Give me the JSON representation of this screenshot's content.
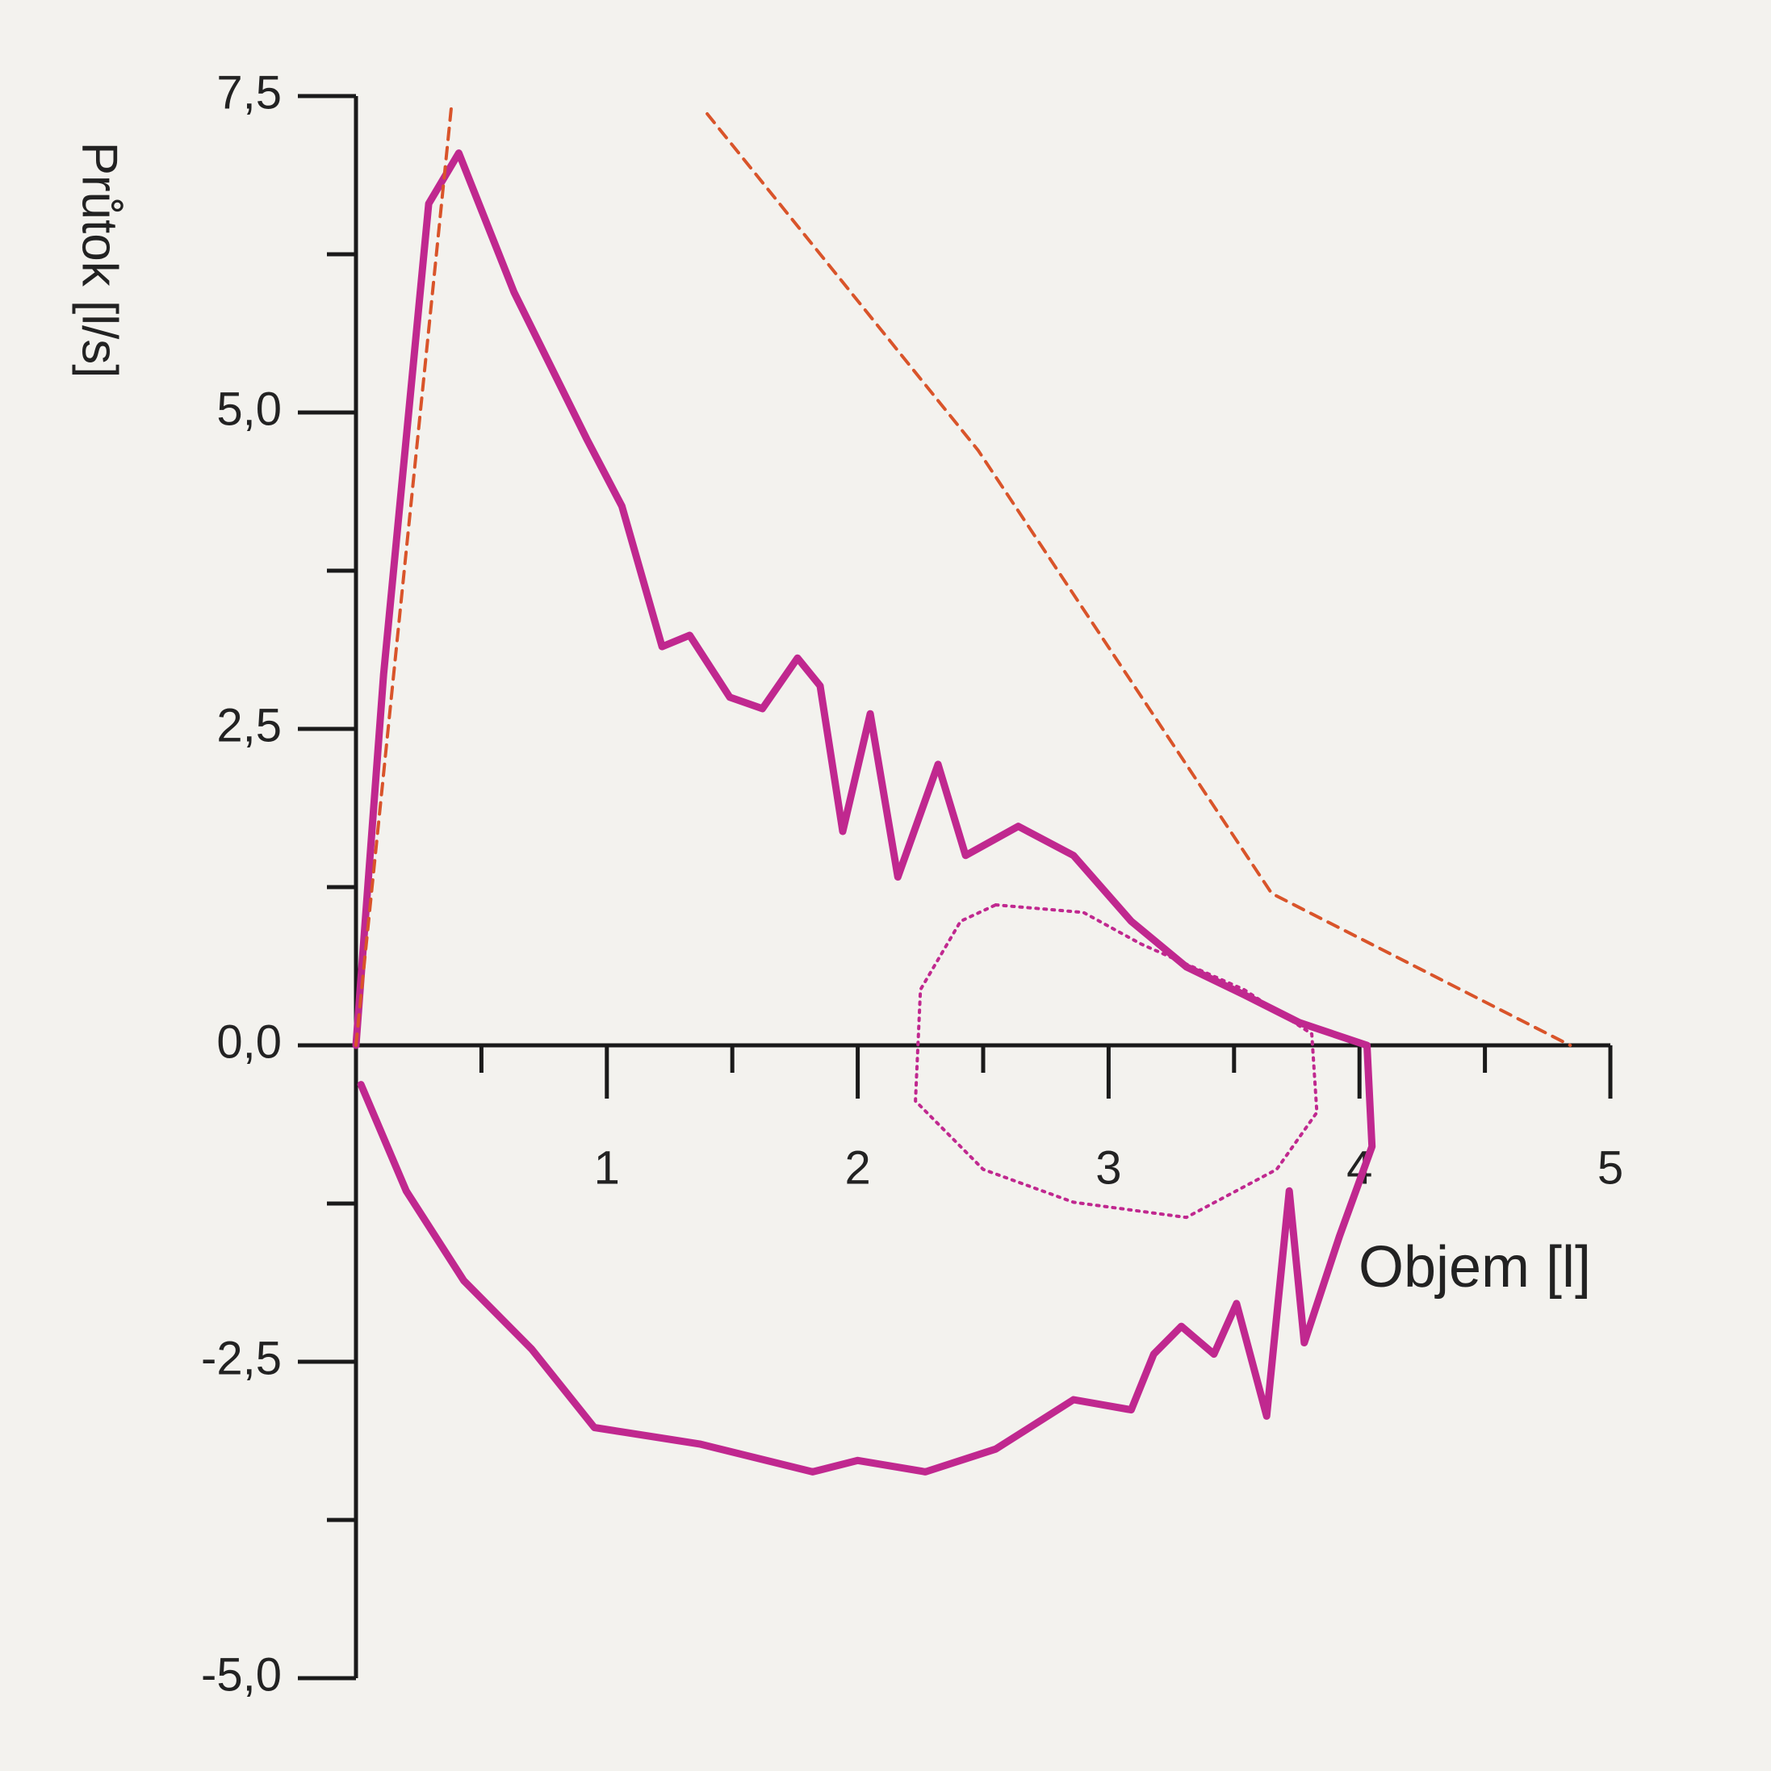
{
  "chart_data": {
    "type": "line",
    "xlabel": "Objem [l]",
    "ylabel": "Průtok [l/s]",
    "xlim": [
      0,
      5
    ],
    "ylim": [
      -5,
      7.5
    ],
    "xticks": [
      1,
      2,
      3,
      4,
      5
    ],
    "xminorticks": [
      0.5,
      1.5,
      2.5,
      3.5,
      4.5
    ],
    "yticks": [
      {
        "value": -5,
        "label": "-5,0"
      },
      {
        "value": -2.5,
        "label": "-2,5"
      },
      {
        "value": 0,
        "label": "0,0"
      },
      {
        "value": 2.5,
        "label": "2,5"
      },
      {
        "value": 5,
        "label": "5,0"
      },
      {
        "value": 7.5,
        "label": "7,5"
      }
    ],
    "yminorticks": [
      -3.75,
      -1.25,
      1.25,
      3.75,
      6.25
    ],
    "series": [
      {
        "color": "#c0288f",
        "style": "solid",
        "x": [
          0,
          0.11,
          0.29,
          0.41,
          0.63,
          0.92,
          1.06,
          1.22,
          1.33,
          1.49,
          1.62,
          1.76,
          1.85,
          1.94,
          2.05,
          2.16,
          2.32,
          2.43,
          2.64,
          2.86,
          3.09,
          3.31,
          3.54,
          3.76,
          4.03,
          4.05,
          3.92,
          3.78,
          3.72,
          3.63,
          3.51,
          3.42,
          3.29,
          3.18,
          3.09,
          2.86,
          2.55,
          2.27,
          2.0,
          1.82,
          1.37,
          0.95,
          0.7,
          0.43,
          0.2,
          0.02
        ],
        "values": [
          0,
          2.93,
          6.65,
          7.05,
          5.95,
          4.79,
          4.26,
          3.15,
          3.24,
          2.75,
          2.66,
          3.06,
          2.84,
          1.69,
          2.62,
          1.33,
          2.22,
          1.5,
          1.73,
          1.5,
          0.98,
          0.62,
          0.4,
          0.18,
          0,
          -0.8,
          -1.51,
          -2.35,
          -1.15,
          -2.93,
          -2.04,
          -2.44,
          -2.22,
          -2.44,
          -2.88,
          -2.8,
          -3.19,
          -3.37,
          -3.28,
          -3.37,
          -3.15,
          -3.02,
          -2.4,
          -1.86,
          -1.15,
          -0.31
        ]
      },
      {
        "color": "#d9542a",
        "style": "dashed",
        "x": [
          0,
          0.38
        ],
        "values": [
          0,
          7.41
        ]
      },
      {
        "color": "#d9542a",
        "style": "dashed",
        "x": [
          1.4,
          2.48,
          3.65,
          4.84
        ],
        "values": [
          7.36,
          4.7,
          1.2,
          0
        ]
      },
      {
        "color": "#c0288f",
        "style": "dotted",
        "x": [
          2.55,
          2.9,
          3.13,
          3.54,
          3.81,
          3.83,
          3.67,
          3.31,
          2.86,
          2.5,
          2.23,
          2.25,
          2.41,
          2.55
        ],
        "values": [
          1.11,
          1.05,
          0.8,
          0.44,
          0.09,
          -0.53,
          -0.98,
          -1.36,
          -1.24,
          -0.98,
          -0.44,
          0.44,
          0.98,
          1.11
        ]
      }
    ]
  }
}
